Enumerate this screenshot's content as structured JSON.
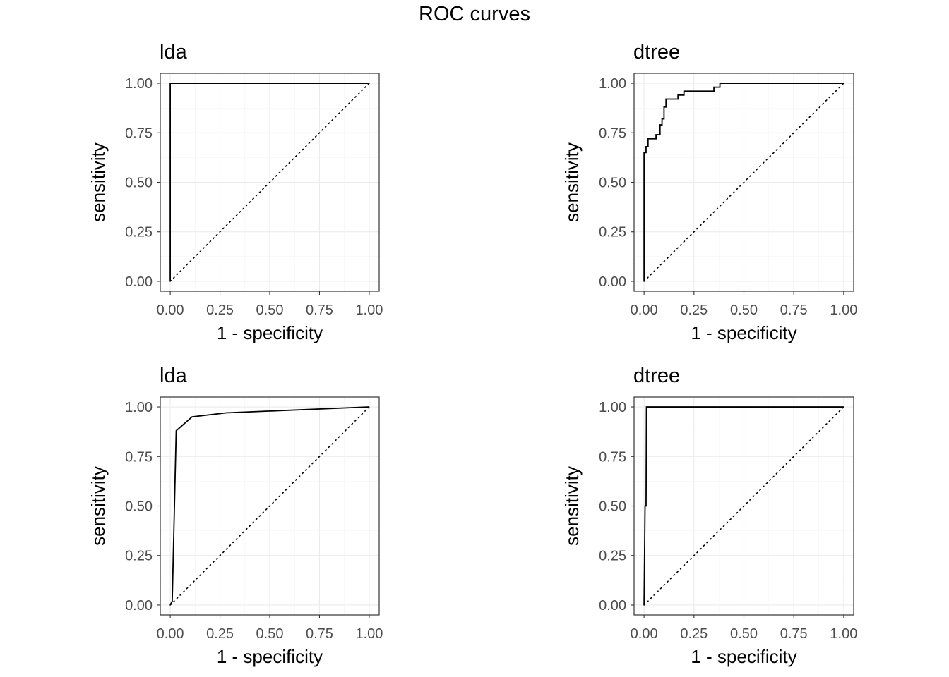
{
  "figure_title": "ROC curves",
  "chart_data": [
    {
      "type": "line",
      "title": "lda",
      "xlabel": "1 - specificity",
      "ylabel": "sensitivity",
      "xlim": [
        0,
        1
      ],
      "ylim": [
        0,
        1
      ],
      "xticks": [
        "0.00",
        "0.25",
        "0.50",
        "0.75",
        "1.00"
      ],
      "yticks": [
        "0.00",
        "0.25",
        "0.50",
        "0.75",
        "1.00"
      ],
      "grid": true,
      "series": [
        {
          "role": "roc",
          "style": "step",
          "x": [
            0,
            0,
            1
          ],
          "y": [
            0,
            1,
            1
          ]
        },
        {
          "role": "reference",
          "style": "dotted",
          "x": [
            0,
            1
          ],
          "y": [
            0,
            1
          ]
        }
      ]
    },
    {
      "type": "line",
      "title": "dtree",
      "xlabel": "1 - specificity",
      "ylabel": "sensitivity",
      "xlim": [
        0,
        1
      ],
      "ylim": [
        0,
        1
      ],
      "xticks": [
        "0.00",
        "0.25",
        "0.50",
        "0.75",
        "1.00"
      ],
      "yticks": [
        "0.00",
        "0.25",
        "0.50",
        "0.75",
        "1.00"
      ],
      "grid": true,
      "series": [
        {
          "role": "roc",
          "style": "step",
          "x": [
            0,
            0,
            0.01,
            0.01,
            0.02,
            0.02,
            0.06,
            0.06,
            0.08,
            0.08,
            0.09,
            0.09,
            0.1,
            0.1,
            0.11,
            0.11,
            0.17,
            0.17,
            0.2,
            0.2,
            0.35,
            0.35,
            0.38,
            0.38,
            1
          ],
          "y": [
            0,
            0.65,
            0.65,
            0.68,
            0.68,
            0.72,
            0.72,
            0.74,
            0.74,
            0.79,
            0.79,
            0.82,
            0.82,
            0.88,
            0.88,
            0.92,
            0.92,
            0.94,
            0.94,
            0.96,
            0.96,
            0.98,
            0.98,
            1,
            1
          ]
        },
        {
          "role": "reference",
          "style": "dotted",
          "x": [
            0,
            1
          ],
          "y": [
            0,
            1
          ]
        }
      ]
    },
    {
      "type": "line",
      "title": "lda",
      "xlabel": "1 - specificity",
      "ylabel": "sensitivity",
      "xlim": [
        0,
        1
      ],
      "ylim": [
        0,
        1
      ],
      "xticks": [
        "0.00",
        "0.25",
        "0.50",
        "0.75",
        "1.00"
      ],
      "yticks": [
        "0.00",
        "0.25",
        "0.50",
        "0.75",
        "1.00"
      ],
      "grid": true,
      "series": [
        {
          "role": "roc",
          "style": "line",
          "x": [
            0,
            0.01,
            0.03,
            0.11,
            0.28,
            1
          ],
          "y": [
            0,
            0.02,
            0.88,
            0.95,
            0.97,
            1
          ]
        },
        {
          "role": "reference",
          "style": "dotted",
          "x": [
            0,
            1
          ],
          "y": [
            0,
            1
          ]
        }
      ]
    },
    {
      "type": "line",
      "title": "dtree",
      "xlabel": "1 - specificity",
      "ylabel": "sensitivity",
      "xlim": [
        0,
        1
      ],
      "ylim": [
        0,
        1
      ],
      "xticks": [
        "0.00",
        "0.25",
        "0.50",
        "0.75",
        "1.00"
      ],
      "yticks": [
        "0.00",
        "0.25",
        "0.50",
        "0.75",
        "1.00"
      ],
      "grid": true,
      "series": [
        {
          "role": "roc",
          "style": "line",
          "x": [
            0,
            0.005,
            0.01,
            0.012,
            1
          ],
          "y": [
            0,
            0.5,
            0.5,
            1,
            1
          ]
        },
        {
          "role": "reference",
          "style": "dotted",
          "x": [
            0,
            1
          ],
          "y": [
            0,
            1
          ]
        }
      ]
    }
  ]
}
